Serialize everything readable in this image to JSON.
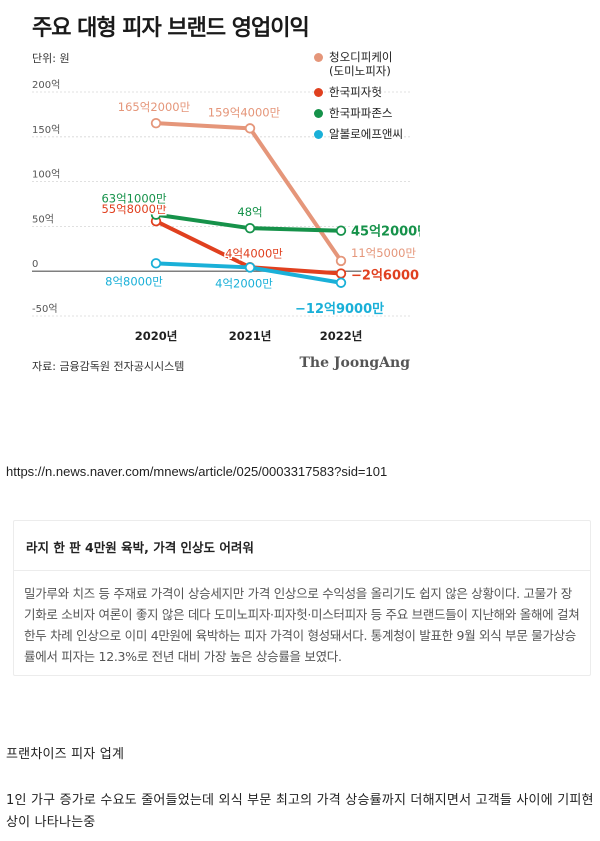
{
  "chart_title": "주요 대형 피자 브랜드 영업이익",
  "unit_label": "단위: 원",
  "source": "자료: 금융감독원 전자공시시스템",
  "logo": "The JoongAng",
  "url": "https://n.news.naver.com/mnews/article/025/0003317583?sid=101",
  "article": {
    "headline": "라지 한 판 4만원 육박, 가격 인상도 어려워",
    "body": "밀가루와 치즈 등 주재료 가격이 상승세지만 가격 인상으로 수익성을 올리기도 쉽지 않은 상황이다. 고물가 장기화로 소비자 여론이 좋지 않은 데다 도미노피자·피자헛·미스터피자 등 주요 브랜드들이 지난해와 올해에 걸쳐 한두 차례 인상으로 이미 4만원에 육박하는 피자 가격이 형성돼서다. 통계청이 발표한 9월 외식 부문 물가상승률에서 피자는 12.3%로 전년 대비 가장 높은 상승률을 보였다."
  },
  "notes": {
    "line1": "프랜차이즈 피자 업계",
    "line2": "1인 가구 증가로 수요도 줄어들었는데 외식 부문 최고의 가격 상승률까지 더해지면서 고객들 사이에 기피현상이 나타나는중"
  },
  "chart_data": {
    "type": "line",
    "title": "주요 대형 피자 브랜드 영업이익",
    "unit": "단위: 원",
    "categories": [
      "2020년",
      "2021년",
      "2022년"
    ],
    "ylim": [
      -50,
      200
    ],
    "yticks": [
      -50,
      0,
      50,
      100,
      150,
      200
    ],
    "ytick_labels": [
      "-50억",
      "0",
      "50억",
      "100억",
      "150억",
      "200억"
    ],
    "grid": true,
    "legend_position": "top-right",
    "series": [
      {
        "name": "청오디피케이\n(도미노피자)",
        "color": "#e5967a",
        "values": [
          165.2,
          159.4,
          11.5
        ],
        "labels": [
          "165억2000만",
          "159억4000만",
          "11억5000만"
        ]
      },
      {
        "name": "한국피자헛",
        "color": "#e0401f",
        "values": [
          55.8,
          4.4,
          -2.6
        ],
        "labels": [
          "55억8000만",
          "4억4000만",
          "−2억6000만"
        ]
      },
      {
        "name": "한국파파존스",
        "color": "#16924a",
        "values": [
          63.1,
          48,
          45.2
        ],
        "labels": [
          "63억1000만",
          "48억",
          "45억2000만"
        ]
      },
      {
        "name": "알볼로에프앤씨",
        "color": "#1ab0d8",
        "values": [
          8.8,
          4.2,
          -12.9
        ],
        "labels": [
          "8억8000만",
          "4억2000만",
          "−12억9000만"
        ]
      }
    ]
  }
}
